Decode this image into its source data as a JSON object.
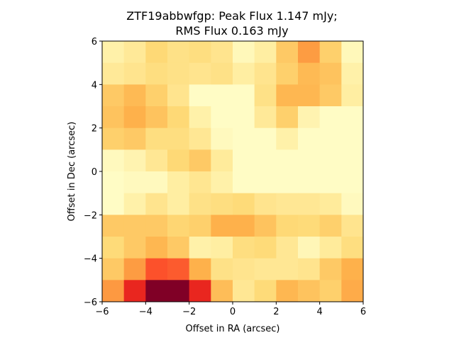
{
  "chart_data": {
    "type": "heatmap",
    "title_line1": "ZTF19abbwfgp: Peak Flux 1.147 mJy;",
    "title_line2": "RMS Flux 0.163 mJy",
    "xlabel": "Offset in RA (arcsec)",
    "ylabel": "Offset in Dec (arcsec)",
    "xlim": [
      -6,
      6
    ],
    "ylim": [
      -6,
      6
    ],
    "xticks": [
      -6,
      -4,
      -2,
      0,
      2,
      4,
      6
    ],
    "yticks": [
      -6,
      -4,
      -2,
      0,
      2,
      4,
      6
    ],
    "xtick_labels": [
      "−6",
      "−4",
      "−2",
      "0",
      "2",
      "4",
      "6"
    ],
    "ytick_labels": [
      "−6",
      "−4",
      "−2",
      "0",
      "2",
      "4",
      "6"
    ],
    "grid": false,
    "colormap": "YlOrRd",
    "cell_size_arcsec": 1,
    "rows_top_to_bottom": [
      [
        0.1,
        0.15,
        0.25,
        0.2,
        0.22,
        0.18,
        0.05,
        0.12,
        0.3,
        0.45,
        0.28,
        0.05
      ],
      [
        0.15,
        0.18,
        0.22,
        0.2,
        0.18,
        0.2,
        0.12,
        0.18,
        0.28,
        0.35,
        0.32,
        0.1
      ],
      [
        0.3,
        0.35,
        0.28,
        0.18,
        0.02,
        0.02,
        0.02,
        0.2,
        0.36,
        0.36,
        0.3,
        0.12
      ],
      [
        0.32,
        0.38,
        0.32,
        0.25,
        0.1,
        0.02,
        0.02,
        0.15,
        0.28,
        0.08,
        0.02,
        0.02
      ],
      [
        0.28,
        0.3,
        0.22,
        0.22,
        0.16,
        0.04,
        0.02,
        0.02,
        0.1,
        0.02,
        0.02,
        0.02
      ],
      [
        0.04,
        0.08,
        0.16,
        0.25,
        0.3,
        0.14,
        0.02,
        0.02,
        0.02,
        0.02,
        0.02,
        0.02
      ],
      [
        0.02,
        0.04,
        0.04,
        0.12,
        0.17,
        0.1,
        0.02,
        0.02,
        0.02,
        0.02,
        0.02,
        0.02
      ],
      [
        0.02,
        0.1,
        0.18,
        0.12,
        0.2,
        0.22,
        0.24,
        0.18,
        0.16,
        0.16,
        0.14,
        0.04
      ],
      [
        0.3,
        0.3,
        0.3,
        0.26,
        0.28,
        0.38,
        0.38,
        0.32,
        0.25,
        0.24,
        0.28,
        0.18
      ],
      [
        0.24,
        0.3,
        0.36,
        0.3,
        0.1,
        0.12,
        0.22,
        0.24,
        0.16,
        0.06,
        0.14,
        0.22
      ],
      [
        0.3,
        0.45,
        0.62,
        0.6,
        0.38,
        0.2,
        0.18,
        0.16,
        0.16,
        0.18,
        0.3,
        0.38
      ],
      [
        0.46,
        0.72,
        1.0,
        1.0,
        0.72,
        0.34,
        0.16,
        0.24,
        0.36,
        0.32,
        0.28,
        0.4
      ]
    ]
  }
}
